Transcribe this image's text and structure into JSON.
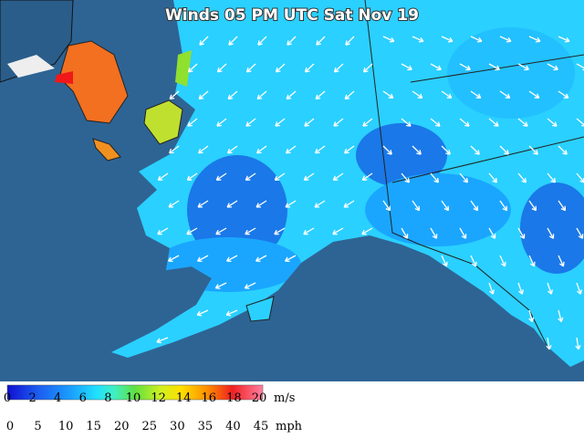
{
  "title": "Winds 05 PM UTC Sat Nov 19",
  "legend": {
    "ms_labels": [
      "0",
      "2",
      "4",
      "6",
      "8",
      "10",
      "12",
      "14",
      "16",
      "18",
      "20"
    ],
    "ms_unit": "m/s",
    "mph_labels": [
      "0",
      "5",
      "10",
      "15",
      "20",
      "25",
      "30",
      "35",
      "40",
      "45"
    ],
    "mph_unit": "mph"
  }
}
